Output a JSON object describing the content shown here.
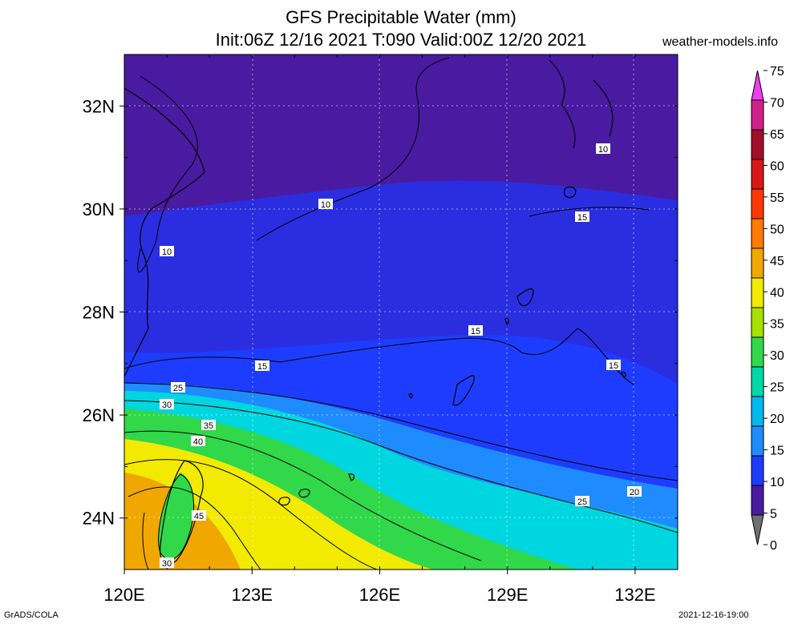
{
  "header": {
    "title_line1": "GFS Precipitable Water (mm)",
    "title_line2": "Init:06Z 12/16 2021 T:090 Valid:00Z 12/20 2021",
    "site": "weather-models.info"
  },
  "map": {
    "lon_range": [
      120,
      133
    ],
    "lat_range": [
      23,
      33
    ],
    "lon_ticks": [
      "120E",
      "123E",
      "126E",
      "129E",
      "132E"
    ],
    "lat_ticks": [
      "24N",
      "26N",
      "28N",
      "30N",
      "32N"
    ],
    "contour_labels": [
      "10",
      "10",
      "10",
      "15",
      "15",
      "15",
      "15",
      "25",
      "30",
      "35",
      "40",
      "45",
      "30",
      "25",
      "20"
    ],
    "colors": {
      "purple": "#4a1aa0",
      "blue": "#1e3cff",
      "cyan": "#00d6e0",
      "green": "#30d84a",
      "yellow": "#f2ea00",
      "orange": "#f0a800"
    }
  },
  "colorbar": {
    "labels": [
      "75",
      "70",
      "65",
      "60",
      "55",
      "50",
      "45",
      "40",
      "35",
      "30",
      "25",
      "20",
      "15",
      "10",
      "5",
      "0"
    ],
    "colors": [
      "#f23cf0",
      "#d0208a",
      "#a01028",
      "#d81818",
      "#ff3800",
      "#ff7a00",
      "#f0a800",
      "#f2ea00",
      "#a8e000",
      "#30d84a",
      "#00d8a8",
      "#00b8f0",
      "#1e8cff",
      "#1e3cff",
      "#4a1aa0",
      "#707070"
    ]
  },
  "footer": {
    "left": "GrADS/COLA",
    "right": "2021-12-16-19:00"
  }
}
